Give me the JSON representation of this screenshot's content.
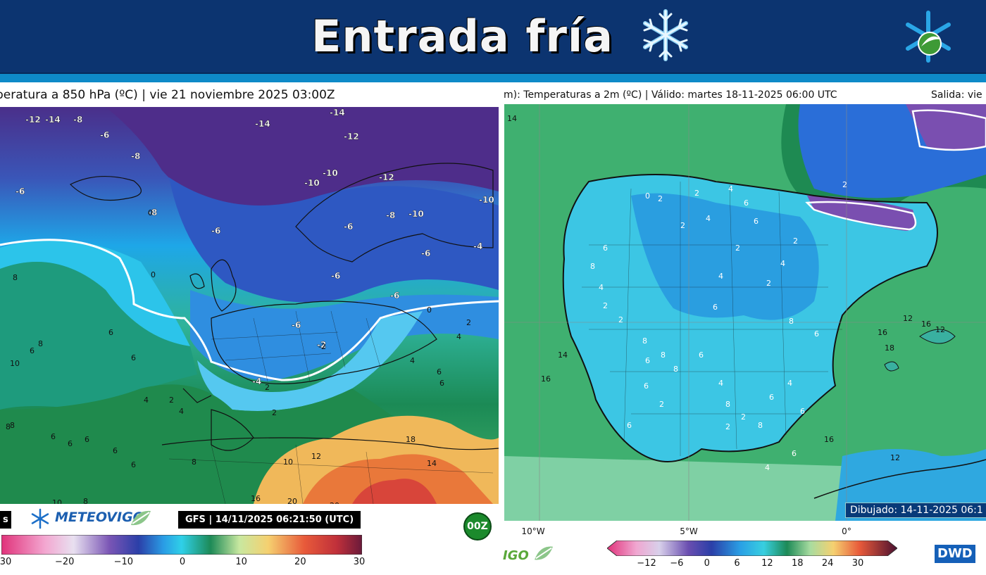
{
  "header": {
    "title": "Entrada fría",
    "title_icon": "snowflake-icon",
    "logo": "meteovigo-snowflake-logo",
    "colors": {
      "background": "#0c3470",
      "strip": "#0e8ac8",
      "title": "#f5f5f5"
    }
  },
  "left_map": {
    "title": "peratura a 850 hPa (ºC) | vie 21 noviembre 2025 03:00Z",
    "labels": [
      "-12",
      "-14",
      "-14",
      "-6",
      "-8",
      "-14",
      "-12",
      "-8",
      "-10",
      "-10",
      "-12",
      "-6",
      "-10",
      "-8",
      "-8",
      "-10",
      "-6",
      "0",
      "-6",
      "-6",
      "-4",
      "-6",
      "-6",
      "-2",
      "-4",
      "-6",
      "8",
      "0",
      "2",
      "0",
      "4",
      "6",
      "6",
      "8",
      "10",
      "6",
      "8",
      "4",
      "2",
      "4",
      "8",
      "6",
      "6",
      "6",
      "6",
      "6",
      "10",
      "8",
      "8",
      "10",
      "12",
      "18",
      "14",
      "16",
      "20",
      "20",
      "-2",
      "2",
      "4",
      "6",
      "2",
      "6"
    ],
    "brand": "METEOVIGO",
    "left_tag": "s",
    "model_run": "GFS | 14/11/2025 06:21:50 (UTC)",
    "run_badge": "00Z",
    "colorbar_ticks": [
      "30",
      "−20",
      "−10",
      "0",
      "10",
      "20",
      "30"
    ]
  },
  "right_map": {
    "title": "m): Temperaturas a 2m (ºC) | Válido: martes 18-11-2025 06:00 UTC",
    "title_right": "Salida: vie",
    "labels": [
      "14",
      "0",
      "2",
      "2",
      "4",
      "6",
      "6",
      "4",
      "2",
      "2",
      "2",
      "2",
      "4",
      "2",
      "4",
      "6",
      "8",
      "6",
      "6",
      "8",
      "4",
      "2",
      "2",
      "8",
      "6",
      "8",
      "8",
      "6",
      "4",
      "8",
      "6",
      "4",
      "6",
      "8",
      "12",
      "16",
      "12",
      "14",
      "16",
      "16",
      "18",
      "16",
      "12",
      "6",
      "4",
      "2",
      "2",
      "2",
      "6",
      "6"
    ],
    "drawn_label": "Dibujado: 14-11-2025 06:1",
    "lon_labels": [
      "10°W",
      "5°W",
      "0°"
    ],
    "brand_fragment": "IGO",
    "provider": "DWD",
    "colorbar_ticks": [
      "−12",
      "−6",
      "0",
      "6",
      "12",
      "18",
      "24",
      "30"
    ]
  }
}
